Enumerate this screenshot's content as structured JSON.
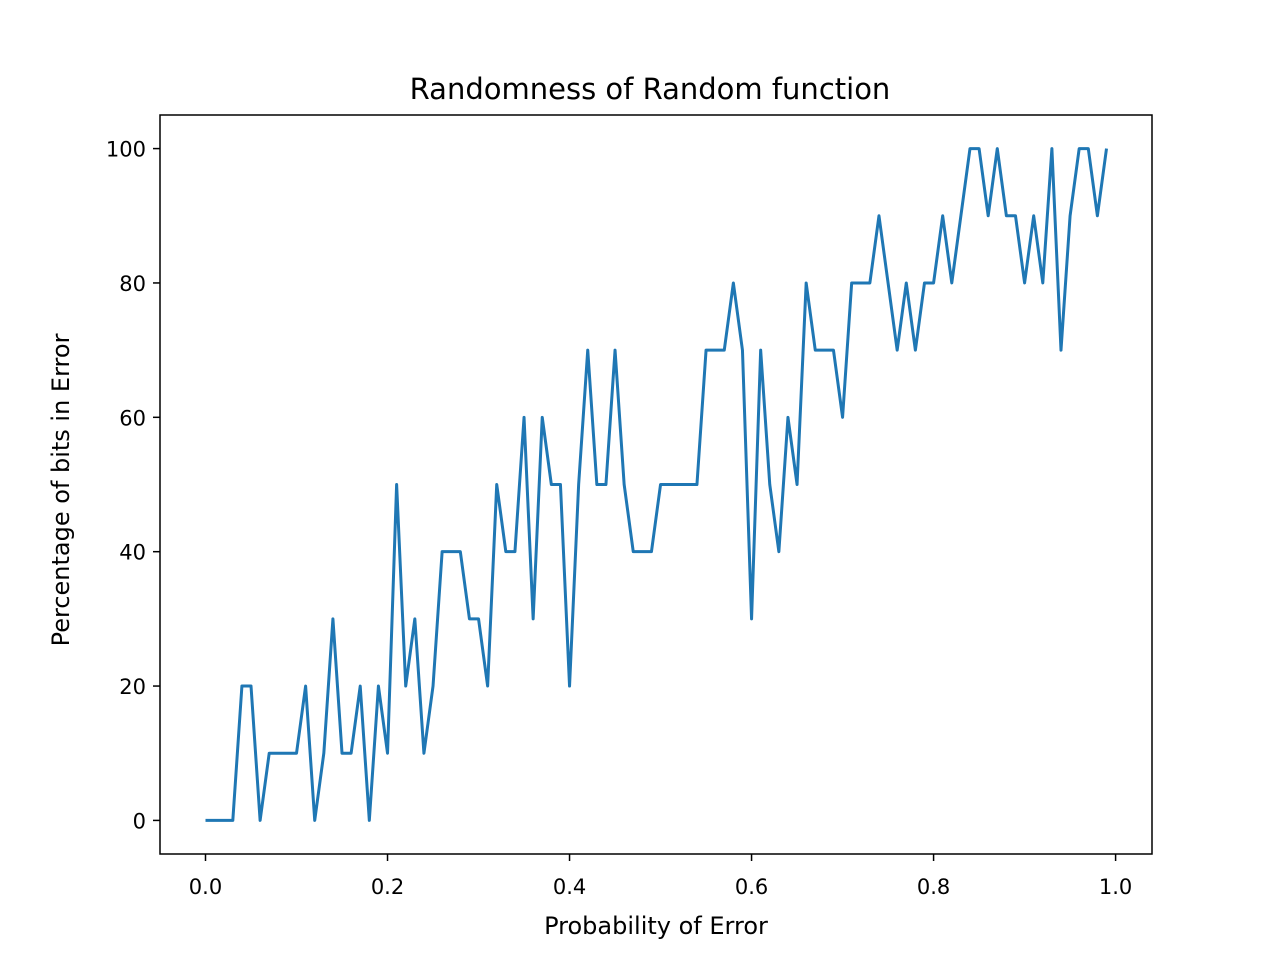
{
  "chart_data": {
    "type": "line",
    "title": "Randomness of Random function",
    "xlabel": "Probability of Error",
    "ylabel": "Percentage of bits in Error",
    "xlim": [
      -0.05,
      1.04
    ],
    "ylim": [
      -5,
      105
    ],
    "xticks": [
      0.0,
      0.2,
      0.4,
      0.6,
      0.8,
      1.0
    ],
    "xtick_labels": [
      "0.0",
      "0.2",
      "0.4",
      "0.6",
      "0.8",
      "1.0"
    ],
    "yticks": [
      0,
      20,
      40,
      60,
      80,
      100
    ],
    "ytick_labels": [
      "0",
      "20",
      "40",
      "60",
      "80",
      "100"
    ],
    "grid": false,
    "line_color": "#1f77b4",
    "series": [
      {
        "x": [
          0.0,
          0.01,
          0.02,
          0.03,
          0.04,
          0.05,
          0.06,
          0.07,
          0.08,
          0.09,
          0.1,
          0.11,
          0.12,
          0.13,
          0.14,
          0.15,
          0.16,
          0.17,
          0.18,
          0.19,
          0.2,
          0.21,
          0.22,
          0.23,
          0.24,
          0.25,
          0.26,
          0.27,
          0.28,
          0.29,
          0.3,
          0.31,
          0.32,
          0.33,
          0.34,
          0.35,
          0.36,
          0.37,
          0.38,
          0.39,
          0.4,
          0.41,
          0.42,
          0.43,
          0.44,
          0.45,
          0.46,
          0.47,
          0.48,
          0.49,
          0.5,
          0.51,
          0.52,
          0.53,
          0.54,
          0.55,
          0.56,
          0.57,
          0.58,
          0.59,
          0.6,
          0.61,
          0.62,
          0.63,
          0.64,
          0.65,
          0.66,
          0.67,
          0.68,
          0.69,
          0.7,
          0.71,
          0.72,
          0.73,
          0.74,
          0.75,
          0.76,
          0.77,
          0.78,
          0.79,
          0.8,
          0.81,
          0.82,
          0.83,
          0.84,
          0.85,
          0.86,
          0.87,
          0.88,
          0.89,
          0.9,
          0.91,
          0.92,
          0.93,
          0.94,
          0.95,
          0.96,
          0.97,
          0.98,
          0.99
        ],
        "values": [
          0,
          0,
          0,
          0,
          20,
          20,
          0,
          10,
          10,
          10,
          10,
          20,
          0,
          10,
          30,
          10,
          10,
          20,
          0,
          20,
          10,
          50,
          20,
          30,
          10,
          20,
          40,
          40,
          40,
          30,
          30,
          20,
          50,
          40,
          40,
          60,
          30,
          60,
          50,
          50,
          20,
          50,
          70,
          50,
          50,
          70,
          50,
          40,
          40,
          40,
          50,
          50,
          50,
          50,
          50,
          70,
          70,
          70,
          80,
          70,
          30,
          70,
          50,
          40,
          60,
          50,
          80,
          70,
          70,
          70,
          60,
          80,
          80,
          80,
          90,
          80,
          70,
          80,
          70,
          80,
          80,
          90,
          80,
          90,
          100,
          100,
          90,
          100,
          90,
          90,
          80,
          90,
          80,
          100,
          70,
          90,
          100,
          100,
          90,
          100
        ]
      }
    ]
  }
}
